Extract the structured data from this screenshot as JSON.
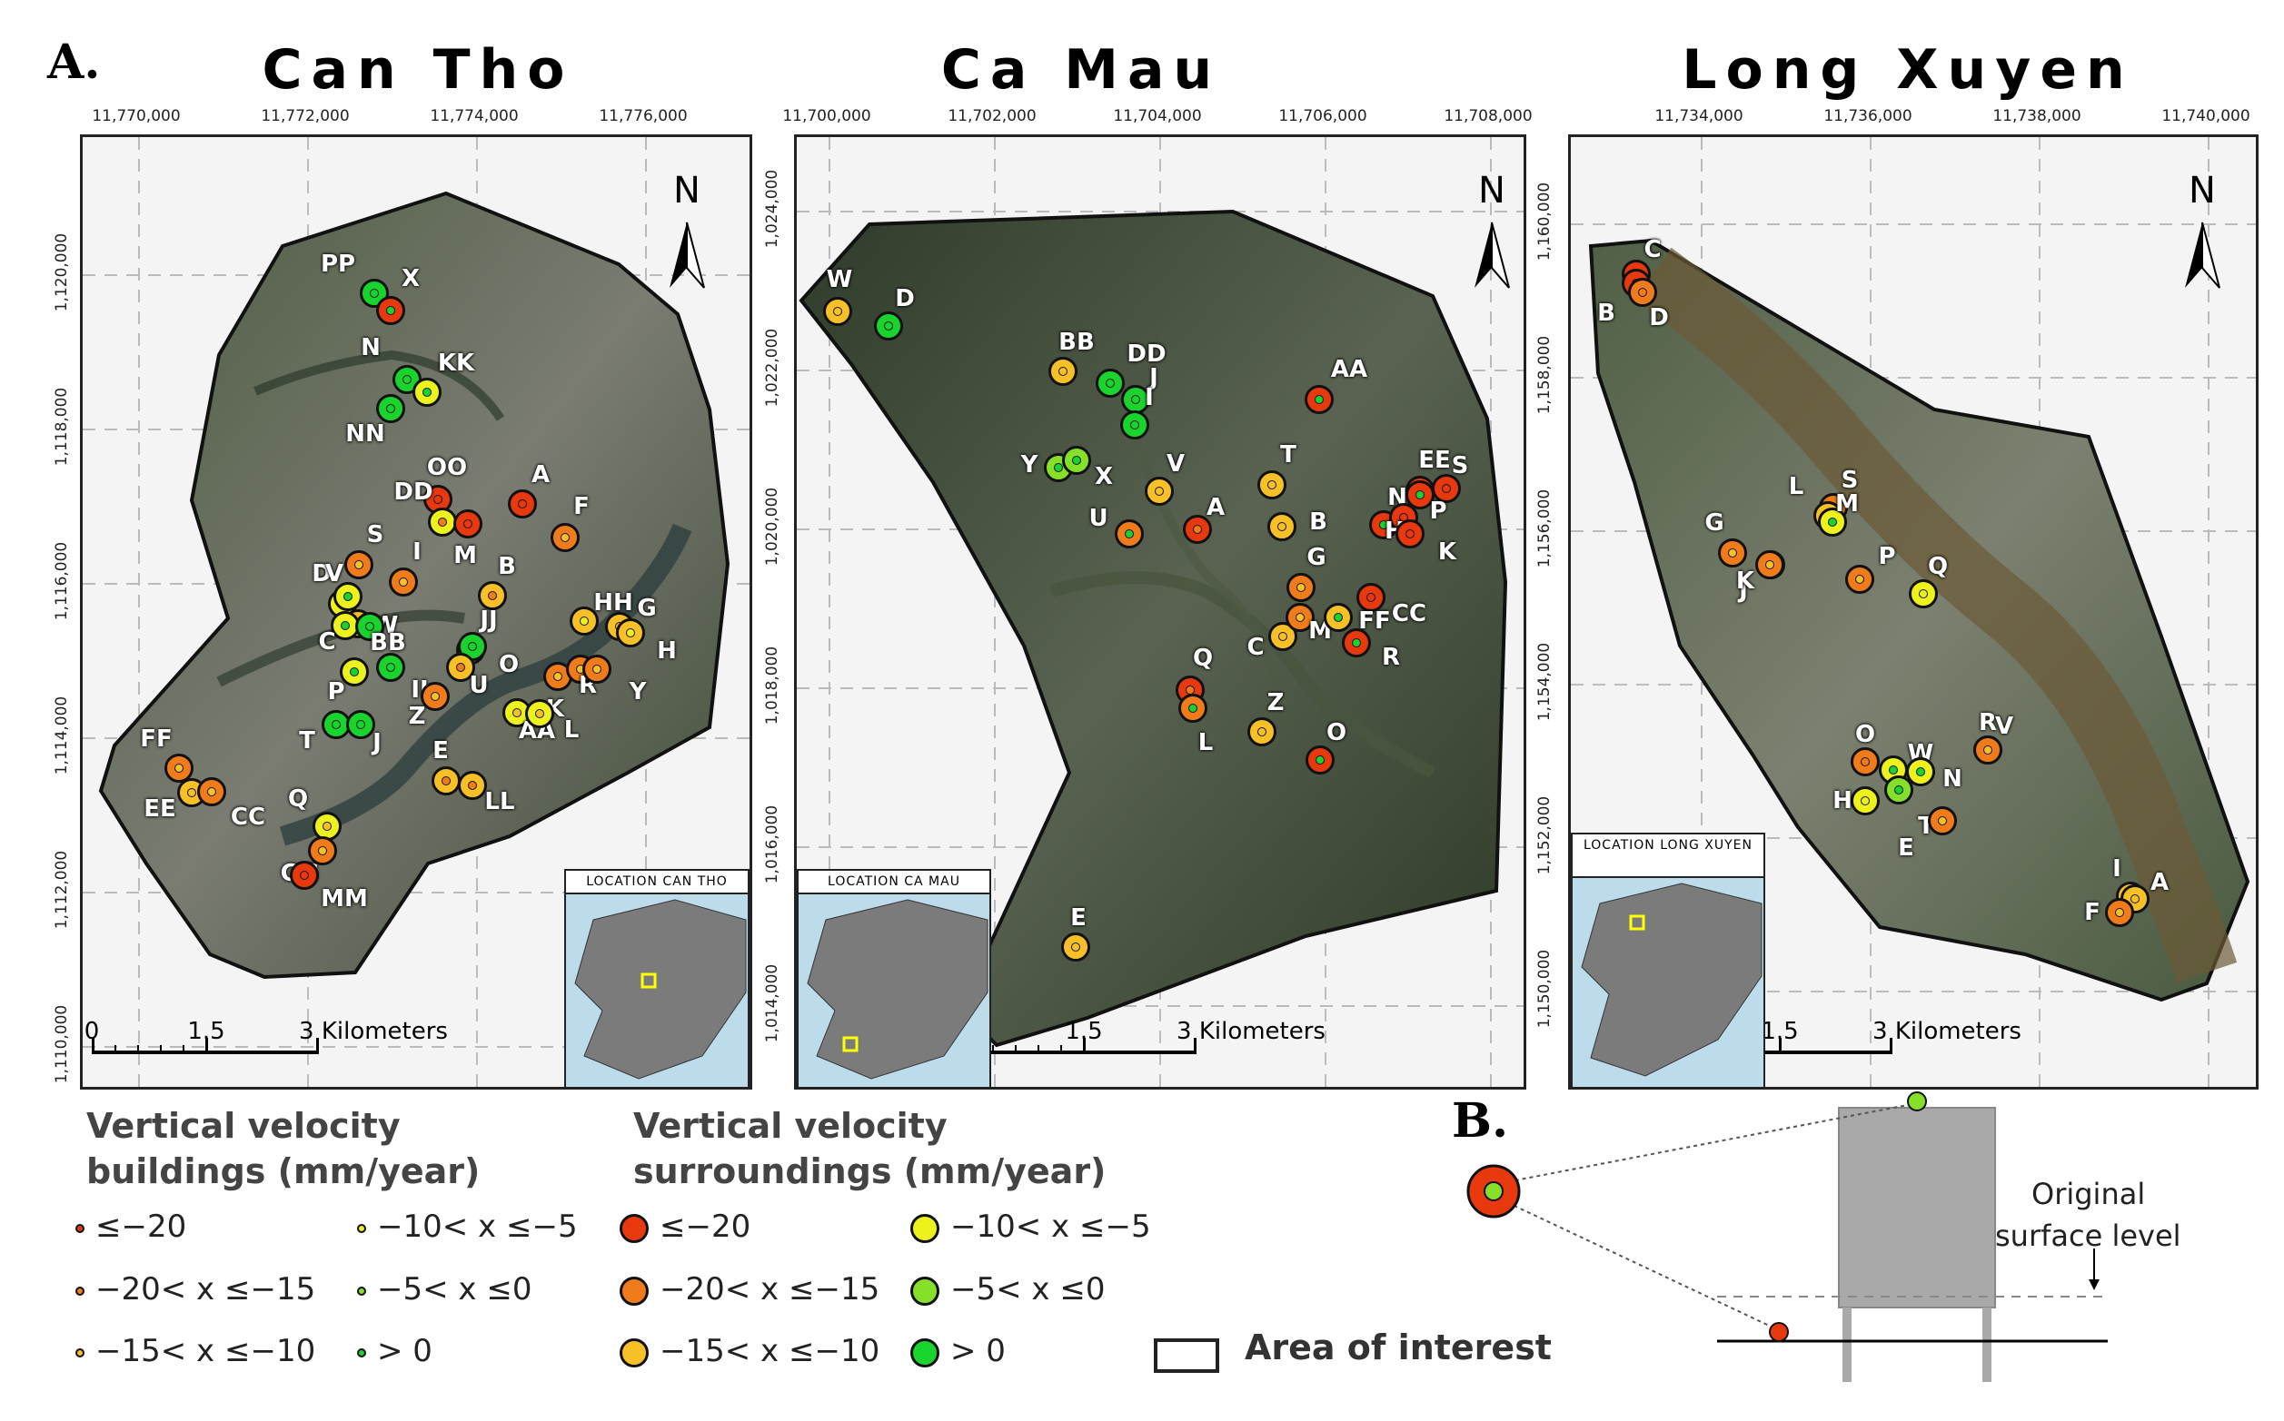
{
  "figure": {
    "label_a": "A.",
    "label_b": "B."
  },
  "colors": {
    "le20": "#e8380d",
    "m20_m15": "#f07b1a",
    "m15_m10": "#f6c026",
    "m10_m5": "#eef21c",
    "m5_0": "#86e02a",
    "gt0": "#18d42c",
    "outline": "#111111"
  },
  "panels": [
    {
      "id": "can-tho",
      "title": "Can Tho",
      "x_ticks": [
        "11,770,000",
        "11,772,000",
        "11,774,000",
        "11,776,000"
      ],
      "y_ticks": [
        "1,120,000",
        "1,118,000",
        "1,116,000",
        "1,114,000",
        "1,112,000",
        "1,110,000"
      ],
      "north": "N",
      "scale": [
        "0",
        "1.5",
        "3 Kilometers"
      ],
      "inset_title": "LOCATION CAN THO",
      "points": [
        {
          "label": "PP",
          "surround": "gt0",
          "building": "gt0"
        },
        {
          "label": "X",
          "surround": "le20",
          "building": "gt0"
        },
        {
          "label": "N",
          "surround": "gt0",
          "building": "gt0"
        },
        {
          "label": "KK",
          "surround": "m10_m5",
          "building": "gt0"
        },
        {
          "label": "NN",
          "surround": "gt0",
          "building": "gt0"
        },
        {
          "label": "OO",
          "surround": "le20",
          "building": "le20"
        },
        {
          "label": "A",
          "surround": "le20",
          "building": "le20"
        },
        {
          "label": "DD",
          "surround": "m10_m5",
          "building": "m20_m15"
        },
        {
          "label": "M",
          "surround": "le20",
          "building": "le20"
        },
        {
          "label": "F",
          "surround": "m20_m15",
          "building": "m15_m10"
        },
        {
          "label": "S",
          "surround": "m20_m15",
          "building": "m15_m10"
        },
        {
          "label": "I",
          "surround": "m20_m15",
          "building": "m15_m10"
        },
        {
          "label": "D",
          "surround": "m10_m5",
          "building": "gt0"
        },
        {
          "label": "V",
          "surround": "m10_m5",
          "building": "gt0"
        },
        {
          "label": "W",
          "surround": "m15_m10",
          "building": "m10_m5"
        },
        {
          "label": "B",
          "surround": "m15_m10",
          "building": "m20_m15"
        },
        {
          "label": "C",
          "surround": "m10_m5",
          "building": "gt0"
        },
        {
          "label": "BB",
          "surround": "gt0",
          "building": "gt0"
        },
        {
          "label": "JJ",
          "surround": "gt0",
          "building": "gt0"
        },
        {
          "label": "O",
          "surround": "gt0",
          "building": "gt0"
        },
        {
          "label": "HH",
          "surround": "m15_m10",
          "building": "m10_m5"
        },
        {
          "label": "G",
          "surround": "m15_m10",
          "building": "m15_m10"
        },
        {
          "label": "H",
          "surround": "m15_m10",
          "building": "m10_m5"
        },
        {
          "label": "P",
          "surround": "m10_m5",
          "building": "gt0"
        },
        {
          "label": "II",
          "surround": "gt0",
          "building": "gt0"
        },
        {
          "label": "U",
          "surround": "m15_m10",
          "building": "m20_m15"
        },
        {
          "label": "K",
          "surround": "m20_m15",
          "building": "m15_m10"
        },
        {
          "label": "R",
          "surround": "m20_m15",
          "building": "m15_m10"
        },
        {
          "label": "Y",
          "surround": "m20_m15",
          "building": "m15_m10"
        },
        {
          "label": "Z",
          "surround": "m20_m15",
          "building": "m15_m10"
        },
        {
          "label": "AA",
          "surround": "m10_m5",
          "building": "m15_m10"
        },
        {
          "label": "L",
          "surround": "m10_m5",
          "building": "m15_m10"
        },
        {
          "label": "T",
          "surround": "gt0",
          "building": "gt0"
        },
        {
          "label": "J",
          "surround": "gt0",
          "building": "gt0"
        },
        {
          "label": "E",
          "surround": "m15_m10",
          "building": "m20_m15"
        },
        {
          "label": "LL",
          "surround": "m15_m10",
          "building": "m20_m15"
        },
        {
          "label": "FF",
          "surround": "m20_m15",
          "building": "m15_m10"
        },
        {
          "label": "EE",
          "surround": "m15_m10",
          "building": "m15_m10"
        },
        {
          "label": "CC",
          "surround": "m20_m15",
          "building": "m15_m10"
        },
        {
          "label": "Q",
          "surround": "m10_m5",
          "building": "m15_m10"
        },
        {
          "label": "GG",
          "surround": "m20_m15",
          "building": "m15_m10"
        },
        {
          "label": "MM",
          "surround": "le20",
          "building": "le20"
        }
      ]
    },
    {
      "id": "ca-mau",
      "title": "Ca Mau",
      "x_ticks": [
        "11,700,000",
        "11,702,000",
        "11,704,000",
        "11,706,000",
        "11,708,000"
      ],
      "y_ticks": [
        "1,024,000",
        "1,022,000",
        "1,020,000",
        "1,018,000",
        "1,016,000",
        "1,014,000"
      ],
      "north": "N",
      "scale": [
        "0",
        "1.5",
        "3 Kilometers"
      ],
      "inset_title": "LOCATION CA MAU",
      "points": [
        {
          "label": "W",
          "surround": "m15_m10",
          "building": "m15_m10"
        },
        {
          "label": "D",
          "surround": "gt0",
          "building": "gt0"
        },
        {
          "label": "BB",
          "surround": "m15_m10",
          "building": "m15_m10"
        },
        {
          "label": "DD",
          "surround": "gt0",
          "building": "gt0"
        },
        {
          "label": "J",
          "surround": "gt0",
          "building": "gt0"
        },
        {
          "label": "I",
          "surround": "gt0",
          "building": "gt0"
        },
        {
          "label": "Y",
          "surround": "m5_0",
          "building": "gt0"
        },
        {
          "label": "X",
          "surround": "m5_0",
          "building": "gt0"
        },
        {
          "label": "V",
          "surround": "m15_m10",
          "building": "m15_m10"
        },
        {
          "label": "U",
          "surround": "m20_m15",
          "building": "gt0"
        },
        {
          "label": "A",
          "surround": "le20",
          "building": "m20_m15"
        },
        {
          "label": "AA",
          "surround": "le20",
          "building": "gt0"
        },
        {
          "label": "T",
          "surround": "m15_m10",
          "building": "m15_m10"
        },
        {
          "label": "B",
          "surround": "m15_m10",
          "building": "m15_m10"
        },
        {
          "label": "EE",
          "surround": "le20",
          "building": "le20"
        },
        {
          "label": "S",
          "surround": "le20",
          "building": "le20"
        },
        {
          "label": "N",
          "surround": "le20",
          "building": "gt0"
        },
        {
          "label": "H",
          "surround": "le20",
          "building": "le20"
        },
        {
          "label": "P",
          "surround": "le20",
          "building": "gt0"
        },
        {
          "label": "K",
          "surround": "le20",
          "building": "le20"
        },
        {
          "label": "G",
          "surround": "m20_m15",
          "building": "m15_m10"
        },
        {
          "label": "CC",
          "surround": "le20",
          "building": "le20"
        },
        {
          "label": "C",
          "surround": "m15_m10",
          "building": "m15_m10"
        },
        {
          "label": "M",
          "surround": "m20_m15",
          "building": "m15_m10"
        },
        {
          "label": "FF",
          "surround": "m15_m10",
          "building": "gt0"
        },
        {
          "label": "R",
          "surround": "le20",
          "building": "gt0"
        },
        {
          "label": "Q",
          "surround": "le20",
          "building": "m20_m15"
        },
        {
          "label": "L",
          "surround": "m20_m15",
          "building": "gt0"
        },
        {
          "label": "Z",
          "surround": "m15_m10",
          "building": "m15_m10"
        },
        {
          "label": "O",
          "surround": "le20",
          "building": "gt0"
        },
        {
          "label": "E",
          "surround": "m15_m10",
          "building": "m15_m10"
        }
      ]
    },
    {
      "id": "long-xuyen",
      "title": "Long Xuyen",
      "x_ticks": [
        "11,734,000",
        "11,736,000",
        "11,738,000",
        "11,740,000"
      ],
      "y_ticks": [
        "1,160,000",
        "1,158,000",
        "1,156,000",
        "1,154,000",
        "1,152,000",
        "1,150,000"
      ],
      "north": "N",
      "scale": [
        "0",
        "1.5",
        "3 Kilometers"
      ],
      "inset_title": "LOCATION LONG XUYEN",
      "points": [
        {
          "label": "C",
          "surround": "le20",
          "building": "le20"
        },
        {
          "label": "B",
          "surround": "le20",
          "building": "le20"
        },
        {
          "label": "D",
          "surround": "m20_m15",
          "building": "m20_m15"
        },
        {
          "label": "S",
          "surround": "m20_m15",
          "building": "m15_m10"
        },
        {
          "label": "L",
          "surround": "m15_m10",
          "building": "m10_m5"
        },
        {
          "label": "M",
          "surround": "m10_m5",
          "building": "gt0"
        },
        {
          "label": "G",
          "surround": "m20_m15",
          "building": "m15_m10"
        },
        {
          "label": "J",
          "surround": "m20_m15",
          "building": "m20_m15"
        },
        {
          "label": "K",
          "surround": "m20_m15",
          "building": "m15_m10"
        },
        {
          "label": "P",
          "surround": "m20_m15",
          "building": "m15_m10"
        },
        {
          "label": "Q",
          "surround": "m10_m5",
          "building": "m10_m5"
        },
        {
          "label": "O",
          "surround": "m20_m15",
          "building": "m20_m15"
        },
        {
          "label": "W",
          "surround": "m10_m5",
          "building": "gt0"
        },
        {
          "label": "N",
          "surround": "m10_m5",
          "building": "gt0"
        },
        {
          "label": "R",
          "surround": "m15_m10",
          "building": "m15_m10"
        },
        {
          "label": "V",
          "surround": "m20_m15",
          "building": "m15_m10"
        },
        {
          "label": "H",
          "surround": "m10_m5",
          "building": "m10_m5"
        },
        {
          "label": "T",
          "surround": "m5_0",
          "building": "gt0"
        },
        {
          "label": "E",
          "surround": "m20_m15",
          "building": "m15_m10"
        },
        {
          "label": "I",
          "surround": "m15_m10",
          "building": "m15_m10"
        },
        {
          "label": "A",
          "surround": "m15_m10",
          "building": "m15_m10"
        },
        {
          "label": "F",
          "surround": "m20_m15",
          "building": "m15_m10"
        }
      ]
    }
  ],
  "legend": {
    "buildings_title_1": "Vertical velocity",
    "buildings_title_2": "buildings (mm/year)",
    "surroundings_title_1": "Vertical velocity",
    "surroundings_title_2": "surroundings (mm/year)",
    "classes": [
      {
        "key": "le20",
        "label": "≤−20"
      },
      {
        "key": "m20_m15",
        "label": "−20< x ≤−15"
      },
      {
        "key": "m15_m10",
        "label": "−15< x ≤−10"
      },
      {
        "key": "m10_m5",
        "label": "−10< x ≤−5"
      },
      {
        "key": "m5_0",
        "label": "−5< x ≤0"
      },
      {
        "key": "gt0",
        "label": "> 0"
      }
    ],
    "area_of_interest": "Area of interest"
  },
  "diagram_b": {
    "annotation_1": "Original",
    "annotation_2": "surface level"
  }
}
